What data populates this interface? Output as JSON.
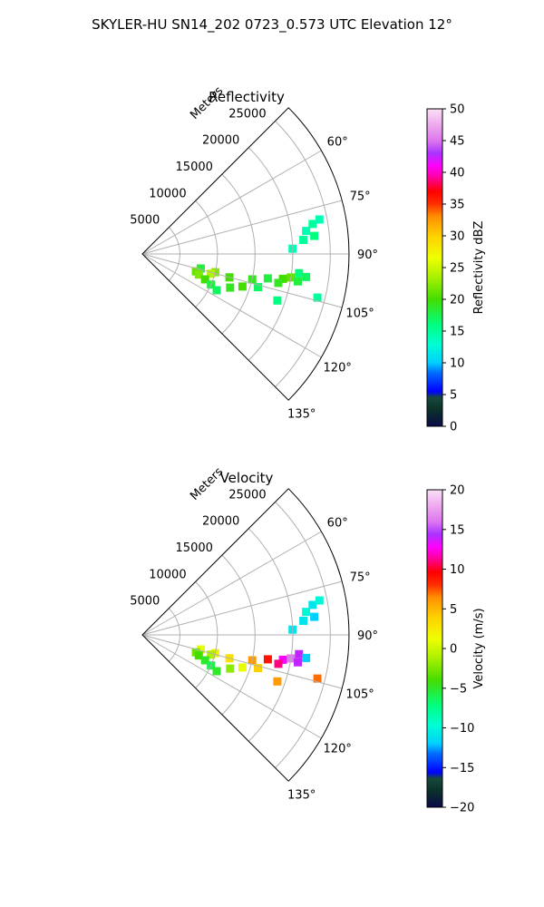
{
  "suptitle": "SKYLER-HU  SN14_202  0723_0.573 UTC Elevation 12°",
  "chart_data": [
    {
      "type": "heatmap",
      "projection": "polar-sector",
      "title": "Reflectivity",
      "radial_label": "Meters",
      "radial_ticks": [
        "5000",
        "10000",
        "15000",
        "20000",
        "25000"
      ],
      "radial_tick_values": [
        5000,
        10000,
        15000,
        20000,
        25000
      ],
      "rlim": [
        0,
        27500
      ],
      "theta_range_deg": [
        45,
        135
      ],
      "theta_ticks": [
        "60°",
        "75°",
        "90°",
        "105°",
        "120°",
        "135°"
      ],
      "theta_tick_values": [
        60,
        75,
        90,
        105,
        120,
        135
      ],
      "grid": true,
      "colorbar": {
        "label": "Reflectivity dBZ",
        "ticks": [
          "0",
          "5",
          "10",
          "15",
          "20",
          "25",
          "30",
          "35",
          "40",
          "45",
          "50"
        ],
        "tick_values": [
          0,
          5,
          10,
          15,
          20,
          25,
          30,
          35,
          40,
          45,
          50
        ],
        "range": [
          0,
          50
        ]
      },
      "echo_cells": [
        [
          104,
          8000,
          18
        ],
        [
          104,
          10000,
          22
        ],
        [
          106,
          9500,
          24
        ],
        [
          105,
          12000,
          20
        ],
        [
          103,
          15000,
          19
        ],
        [
          101,
          17000,
          18
        ],
        [
          100,
          19000,
          20
        ],
        [
          99,
          20000,
          21
        ],
        [
          97,
          21000,
          16
        ],
        [
          98,
          22000,
          17
        ],
        [
          108,
          7500,
          21
        ],
        [
          110,
          8000,
          22
        ],
        [
          112,
          9000,
          20
        ],
        [
          114,
          10000,
          18
        ],
        [
          116,
          11000,
          17
        ],
        [
          111,
          12500,
          19
        ],
        [
          108,
          14000,
          20
        ],
        [
          106,
          16000,
          17
        ],
        [
          102,
          18500,
          19
        ],
        [
          100,
          21000,
          18
        ],
        [
          85,
          21500,
          15
        ],
        [
          82,
          22000,
          14
        ],
        [
          80,
          23000,
          15
        ],
        [
          84,
          23000,
          16
        ],
        [
          79,
          24000,
          14
        ],
        [
          88,
          20000,
          14
        ],
        [
          104,
          24000,
          15
        ],
        [
          109,
          19000,
          16
        ]
      ]
    },
    {
      "type": "heatmap",
      "projection": "polar-sector",
      "title": "Velocity",
      "radial_label": "Meters",
      "radial_ticks": [
        "5000",
        "10000",
        "15000",
        "20000",
        "25000"
      ],
      "radial_tick_values": [
        5000,
        10000,
        15000,
        20000,
        25000
      ],
      "rlim": [
        0,
        27500
      ],
      "theta_range_deg": [
        45,
        135
      ],
      "theta_ticks": [
        "60°",
        "75°",
        "90°",
        "105°",
        "120°",
        "135°"
      ],
      "theta_tick_values": [
        60,
        75,
        90,
        105,
        120,
        135
      ],
      "grid": true,
      "colorbar": {
        "label": "Velocity (m/s)",
        "ticks": [
          "−20",
          "−15",
          "−10",
          "−5",
          "0",
          "5",
          "10",
          "15",
          "20"
        ],
        "tick_values": [
          -20,
          -15,
          -10,
          -5,
          0,
          5,
          10,
          15,
          20
        ],
        "range": [
          -20,
          20
        ]
      },
      "echo_cells": [
        [
          104,
          8000,
          1
        ],
        [
          104,
          10000,
          2
        ],
        [
          106,
          9500,
          -1
        ],
        [
          105,
          12000,
          3
        ],
        [
          103,
          15000,
          6
        ],
        [
          101,
          17000,
          9
        ],
        [
          100,
          19000,
          13
        ],
        [
          99,
          20000,
          16
        ],
        [
          97,
          21000,
          14
        ],
        [
          98,
          22000,
          -12
        ],
        [
          108,
          7500,
          -3
        ],
        [
          110,
          8000,
          -4
        ],
        [
          112,
          9000,
          -5
        ],
        [
          114,
          10000,
          -6
        ],
        [
          116,
          11000,
          -5
        ],
        [
          111,
          12500,
          -2
        ],
        [
          108,
          14000,
          1
        ],
        [
          106,
          16000,
          4
        ],
        [
          102,
          18500,
          11
        ],
        [
          100,
          21000,
          14
        ],
        [
          85,
          21500,
          -11
        ],
        [
          82,
          22000,
          -10
        ],
        [
          80,
          23000,
          -11
        ],
        [
          84,
          23000,
          -12
        ],
        [
          79,
          24000,
          -10
        ],
        [
          88,
          20000,
          -11
        ],
        [
          104,
          24000,
          7
        ],
        [
          109,
          19000,
          6
        ]
      ]
    }
  ]
}
